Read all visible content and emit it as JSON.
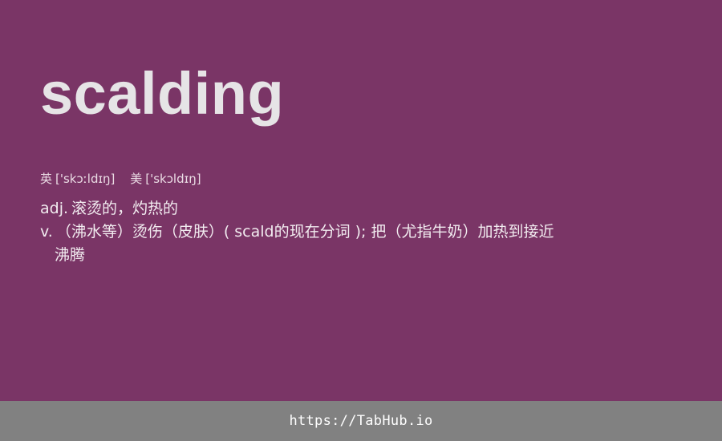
{
  "entry": {
    "word": "scalding"
  },
  "pronunciation": {
    "uk_label": "英",
    "uk_ipa": "['skɔːldɪŋ]",
    "us_label": "美",
    "us_ipa": "['skɔldɪŋ]"
  },
  "definitions": [
    {
      "pos": "adj.",
      "text": "滚烫的，灼热的"
    },
    {
      "pos": "v.",
      "text": "（沸水等）烫伤（皮肤）( scald的现在分词 ); 把（尤指牛奶）加热到接近沸腾"
    }
  ],
  "footer": {
    "link_text": "https://TabHub.io"
  },
  "colors": {
    "background": "#7a3566",
    "footer_background": "#818181",
    "word_color": "#e6e4e6"
  }
}
